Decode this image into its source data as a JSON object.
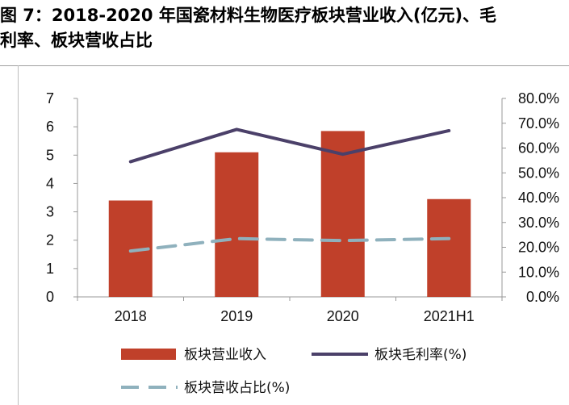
{
  "figure": {
    "title_line1": "图 7：2018-2020 年国瓷材料生物医疗板块营业收入(亿元)、毛",
    "title_line2": "利率、板块营收占比"
  },
  "chart_data": {
    "type": "bar",
    "categories": [
      "2018",
      "2019",
      "2020",
      "2021H1"
    ],
    "series": [
      {
        "name": "板块营业收入",
        "type": "bar",
        "axis": "left",
        "values": [
          3.4,
          5.1,
          5.85,
          3.45
        ],
        "color": "#c0402a"
      },
      {
        "name": "板块毛利率(%)",
        "type": "line",
        "axis": "right",
        "values": [
          54.5,
          67.5,
          57.5,
          67.0
        ],
        "color": "#4b4069",
        "dash": "solid"
      },
      {
        "name": "板块营收占比(%)",
        "type": "line",
        "axis": "right",
        "values": [
          18.5,
          23.5,
          22.7,
          23.5
        ],
        "color": "#8fb1bd",
        "dash": "dashed"
      }
    ],
    "y_left": {
      "min": 0,
      "max": 7,
      "step": 1,
      "tick_labels": [
        "0",
        "1",
        "2",
        "3",
        "4",
        "5",
        "6",
        "7"
      ]
    },
    "y_right": {
      "min": 0,
      "max": 80,
      "step": 10,
      "tick_labels": [
        "0.0%",
        "10.0%",
        "20.0%",
        "30.0%",
        "40.0%",
        "50.0%",
        "60.0%",
        "70.0%",
        "80.0%"
      ]
    },
    "grid": false,
    "legend_position": "bottom",
    "xlabel": "",
    "ylabel": ""
  }
}
